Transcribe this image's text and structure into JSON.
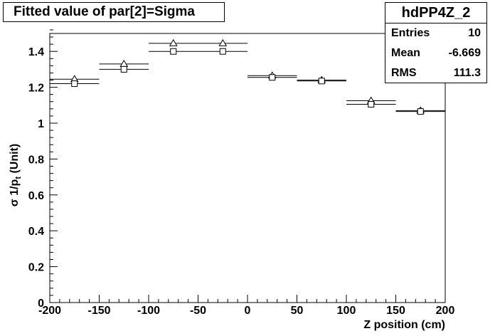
{
  "title": "Fitted value of par[2]=Sigma",
  "stats": {
    "name": "hdPP4Z_2",
    "rows": [
      {
        "label": "Entries",
        "value": "10"
      },
      {
        "label": "Mean",
        "value": "-6.669"
      },
      {
        "label": "RMS",
        "value": "111.3"
      }
    ]
  },
  "chart_data": {
    "type": "scatter",
    "xlabel": "Z position (cm)",
    "ylabel_main": "σ 1/p",
    "ylabel_sub": "t",
    "ylabel_tail": " (Unit)",
    "xlim": [
      -200,
      200
    ],
    "ylim": [
      0,
      1.5
    ],
    "xticks": [
      -200,
      -150,
      -100,
      -50,
      0,
      50,
      100,
      150,
      200
    ],
    "yticks": [
      0,
      0.2,
      0.4,
      0.6,
      0.8,
      1,
      1.2,
      1.4
    ],
    "ytick_labels": [
      "0",
      "0.2",
      "0.4",
      "0.6",
      "0.8",
      "1",
      "1.2",
      "1.4"
    ],
    "bin_halfwidth": 25,
    "series": [
      {
        "marker": "triangle",
        "x": [
          -175,
          -125,
          -75,
          -25,
          25,
          75,
          125,
          175
        ],
        "y": [
          1.245,
          1.33,
          1.445,
          1.445,
          1.265,
          1.24,
          1.125,
          1.07
        ]
      },
      {
        "marker": "square",
        "x": [
          -175,
          -125,
          -75,
          -25,
          25,
          75,
          125,
          175
        ],
        "y": [
          1.22,
          1.3,
          1.4,
          1.4,
          1.255,
          1.235,
          1.105,
          1.065
        ]
      }
    ]
  }
}
